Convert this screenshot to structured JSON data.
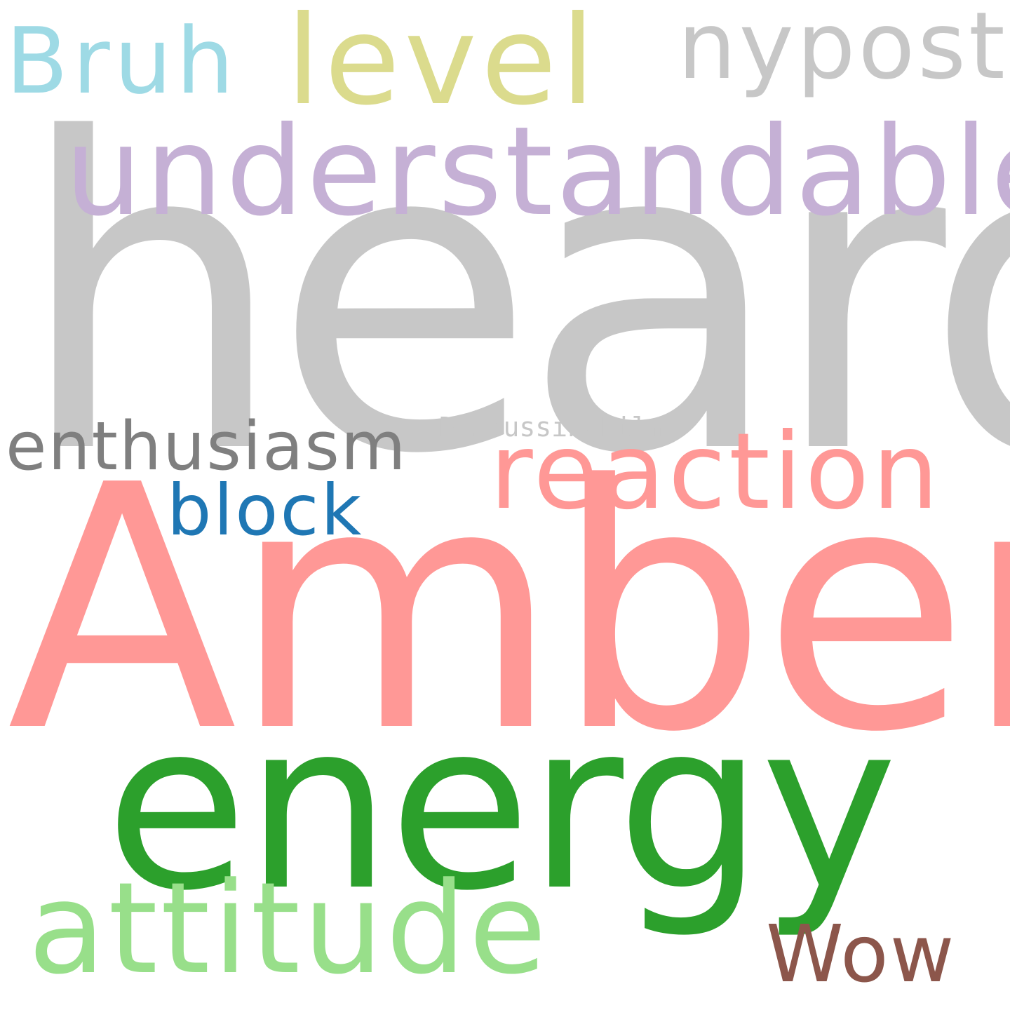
{
  "words": [
    {
      "id": "heard",
      "text": "heard",
      "color": "#c7c7c7"
    },
    {
      "id": "amber",
      "text": "Amber",
      "color": "#ff9896"
    },
    {
      "id": "energy",
      "text": "energy",
      "color": "#2ca02c"
    },
    {
      "id": "understandable",
      "text": "understandable",
      "color": "#c5b0d5"
    },
    {
      "id": "level",
      "text": "level",
      "color": "#dbdb8d"
    },
    {
      "id": "nypost",
      "text": "nypost",
      "color": "#c7c7c7"
    },
    {
      "id": "bruh",
      "text": "Bruh",
      "color": "#9edae5"
    },
    {
      "id": "reaction",
      "text": "reaction",
      "color": "#ff9896"
    },
    {
      "id": "enthusiasm",
      "text": "enthusiasm",
      "color": "#7f7f7f"
    },
    {
      "id": "discussingfilm",
      "text": "DiscussingFilm",
      "color": "#c7c7c7"
    },
    {
      "id": "block",
      "text": "block",
      "color": "#1f77b4"
    },
    {
      "id": "attitude",
      "text": "attitude",
      "color": "#98df8a"
    },
    {
      "id": "wow",
      "text": "Wow",
      "color": "#8c564b"
    }
  ]
}
